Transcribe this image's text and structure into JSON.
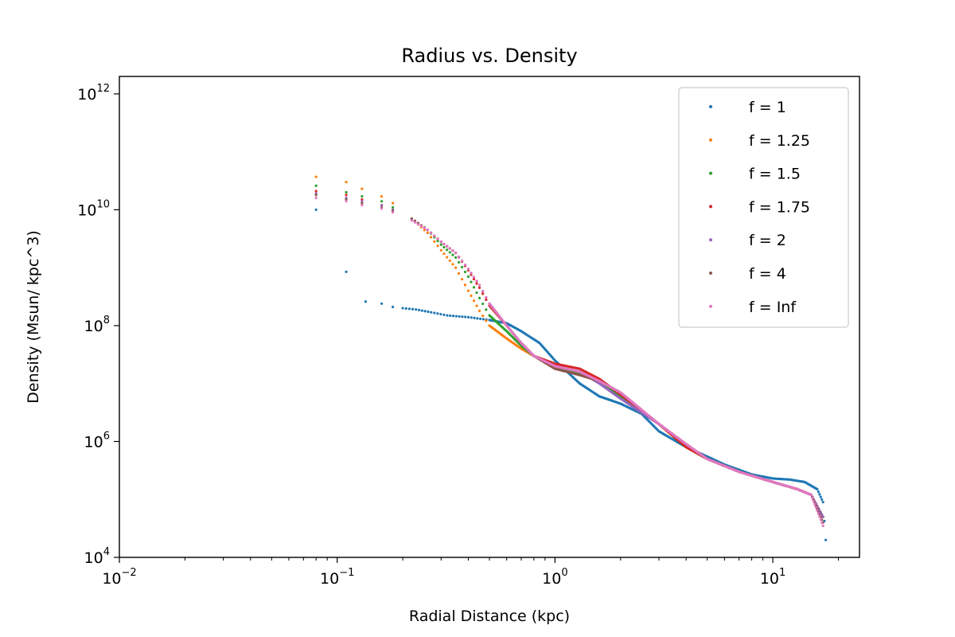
{
  "chart_data": {
    "type": "scatter",
    "title": "Radius vs. Density",
    "xlabel": "Radial Distance (kpc)",
    "ylabel": "Density (Msun/ kpc^3)",
    "xscale": "log",
    "yscale": "log",
    "xlim": [
      0.01,
      25
    ],
    "ylim": [
      10000,
      2000000000000
    ],
    "x_ticks": [
      {
        "value": 0.01,
        "base": "10",
        "exp": "−2"
      },
      {
        "value": 0.1,
        "base": "10",
        "exp": "−1"
      },
      {
        "value": 1,
        "base": "10",
        "exp": "0"
      },
      {
        "value": 10,
        "base": "10",
        "exp": "1"
      }
    ],
    "y_ticks": [
      {
        "value": 10000,
        "base": "10",
        "exp": "4"
      },
      {
        "value": 1000000,
        "base": "10",
        "exp": "6"
      },
      {
        "value": 100000000,
        "base": "10",
        "exp": "8"
      },
      {
        "value": 10000000000,
        "base": "10",
        "exp": "10"
      },
      {
        "value": 1000000000000,
        "base": "10",
        "exp": "12"
      }
    ],
    "grid": false,
    "legend_position": "top-right",
    "series": [
      {
        "name": "f = 1",
        "color": "#1f77b4",
        "points": [
          [
            0.08,
            10000000000.0
          ],
          [
            0.11,
            850000000.0
          ],
          [
            0.135,
            260000000.0
          ],
          [
            0.16,
            240000000.0
          ],
          [
            0.18,
            210000000.0
          ],
          [
            0.2,
            200000000.0
          ],
          [
            0.23,
            190000000.0
          ],
          [
            0.27,
            170000000.0
          ],
          [
            0.32,
            150000000.0
          ],
          [
            0.4,
            140000000.0
          ],
          [
            0.5,
            125000000.0
          ],
          [
            0.6,
            110000000.0
          ],
          [
            0.7,
            80000000.0
          ],
          [
            0.85,
            50000000.0
          ],
          [
            1.0,
            25000000.0
          ],
          [
            1.3,
            10000000.0
          ],
          [
            1.6,
            6000000.0
          ],
          [
            2.0,
            4500000.0
          ],
          [
            2.5,
            3000000.0
          ],
          [
            3.0,
            1500000.0
          ],
          [
            4.0,
            800000.0
          ],
          [
            5.0,
            550000.0
          ],
          [
            6.0,
            400000.0
          ],
          [
            8.0,
            270000.0
          ],
          [
            10.0,
            230000.0
          ],
          [
            12.0,
            220000.0
          ],
          [
            14.0,
            200000.0
          ],
          [
            16.0,
            150000.0
          ],
          [
            17.0,
            90000.0
          ],
          [
            17.5,
            20000.0
          ]
        ]
      },
      {
        "name": "f = 1.25",
        "color": "#ff7f0e",
        "points": [
          [
            0.08,
            37000000000.0
          ],
          [
            0.11,
            30000000000.0
          ],
          [
            0.13,
            23000000000.0
          ],
          [
            0.16,
            17000000000.0
          ],
          [
            0.18,
            13000000000.0
          ],
          [
            0.22,
            7000000000.0
          ],
          [
            0.26,
            4000000000.0
          ],
          [
            0.3,
            2000000000.0
          ],
          [
            0.35,
            1000000000.0
          ],
          [
            0.4,
            400000000.0
          ],
          [
            0.45,
            180000000.0
          ],
          [
            0.5,
            100000000.0
          ],
          [
            0.6,
            60000000.0
          ],
          [
            0.7,
            40000000.0
          ],
          [
            0.8,
            30000000.0
          ],
          [
            1.0,
            20000000.0
          ],
          [
            1.3,
            15000000.0
          ],
          [
            1.6,
            11000000.0
          ],
          [
            2.0,
            6000000.0
          ],
          [
            3.0,
            2000000.0
          ],
          [
            4.0,
            800000.0
          ],
          [
            5.0,
            500000.0
          ],
          [
            7.0,
            300000.0
          ],
          [
            10.0,
            200000.0
          ],
          [
            13.0,
            150000.0
          ],
          [
            15.0,
            120000.0
          ],
          [
            17.0,
            50000.0
          ]
        ]
      },
      {
        "name": "f = 1.5",
        "color": "#2ca02c",
        "points": [
          [
            0.08,
            26000000000.0
          ],
          [
            0.11,
            20000000000.0
          ],
          [
            0.13,
            17000000000.0
          ],
          [
            0.16,
            14000000000.0
          ],
          [
            0.18,
            11000000000.0
          ],
          [
            0.22,
            7000000000.0
          ],
          [
            0.26,
            4500000000.0
          ],
          [
            0.3,
            2500000000.0
          ],
          [
            0.35,
            1500000000.0
          ],
          [
            0.4,
            700000000.0
          ],
          [
            0.45,
            300000000.0
          ],
          [
            0.5,
            150000000.0
          ],
          [
            0.6,
            80000000.0
          ],
          [
            0.7,
            45000000.0
          ],
          [
            0.8,
            30000000.0
          ],
          [
            1.0,
            20000000.0
          ],
          [
            1.3,
            15000000.0
          ],
          [
            1.6,
            11000000.0
          ],
          [
            2.0,
            6000000.0
          ],
          [
            3.0,
            2000000.0
          ],
          [
            4.0,
            800000.0
          ],
          [
            5.0,
            500000.0
          ],
          [
            7.0,
            300000.0
          ],
          [
            10.0,
            200000.0
          ],
          [
            13.0,
            150000.0
          ],
          [
            15.0,
            120000.0
          ],
          [
            17.0,
            50000.0
          ]
        ]
      },
      {
        "name": "f = 1.75",
        "color": "#d62728",
        "points": [
          [
            0.08,
            21000000000.0
          ],
          [
            0.11,
            18000000000.0
          ],
          [
            0.13,
            15000000000.0
          ],
          [
            0.16,
            12000000000.0
          ],
          [
            0.18,
            10000000000.0
          ],
          [
            0.22,
            7000000000.0
          ],
          [
            0.26,
            4500000000.0
          ],
          [
            0.3,
            2800000000.0
          ],
          [
            0.35,
            1800000000.0
          ],
          [
            0.4,
            900000000.0
          ],
          [
            0.45,
            450000000.0
          ],
          [
            0.5,
            220000000.0
          ],
          [
            0.6,
            100000000.0
          ],
          [
            0.7,
            50000000.0
          ],
          [
            0.8,
            30000000.0
          ],
          [
            1.0,
            22000000.0
          ],
          [
            1.3,
            18000000.0
          ],
          [
            1.6,
            12000000.0
          ],
          [
            2.0,
            6500000.0
          ],
          [
            3.0,
            2000000.0
          ],
          [
            4.0,
            800000.0
          ],
          [
            5.0,
            500000.0
          ],
          [
            7.0,
            300000.0
          ],
          [
            10.0,
            200000.0
          ],
          [
            13.0,
            150000.0
          ],
          [
            15.0,
            120000.0
          ],
          [
            17.0,
            50000.0
          ]
        ]
      },
      {
        "name": "f = 2",
        "color": "#9467bd",
        "points": [
          [
            0.08,
            19000000000.0
          ],
          [
            0.11,
            16000000000.0
          ],
          [
            0.13,
            14000000000.0
          ],
          [
            0.16,
            12000000000.0
          ],
          [
            0.18,
            10000000000.0
          ],
          [
            0.22,
            7000000000.0
          ],
          [
            0.26,
            4500000000.0
          ],
          [
            0.3,
            2800000000.0
          ],
          [
            0.35,
            1800000000.0
          ],
          [
            0.4,
            950000000.0
          ],
          [
            0.45,
            500000000.0
          ],
          [
            0.5,
            240000000.0
          ],
          [
            0.6,
            100000000.0
          ],
          [
            0.7,
            50000000.0
          ],
          [
            0.8,
            30000000.0
          ],
          [
            1.0,
            20000000.0
          ],
          [
            1.3,
            16000000.0
          ],
          [
            1.6,
            10000000.0
          ],
          [
            2.0,
            5500000.0
          ],
          [
            3.0,
            2000000.0
          ],
          [
            4.0,
            900000.0
          ],
          [
            5.0,
            500000.0
          ],
          [
            7.0,
            300000.0
          ],
          [
            10.0,
            200000.0
          ],
          [
            13.0,
            150000.0
          ],
          [
            15.0,
            120000.0
          ],
          [
            17.0,
            50000.0
          ]
        ]
      },
      {
        "name": "f = 4",
        "color": "#8c564b",
        "points": [
          [
            0.08,
            18000000000.0
          ],
          [
            0.11,
            15000000000.0
          ],
          [
            0.13,
            13000000000.0
          ],
          [
            0.16,
            11000000000.0
          ],
          [
            0.18,
            9500000000.0
          ],
          [
            0.22,
            7000000000.0
          ],
          [
            0.26,
            4500000000.0
          ],
          [
            0.3,
            2800000000.0
          ],
          [
            0.35,
            1800000000.0
          ],
          [
            0.4,
            950000000.0
          ],
          [
            0.45,
            500000000.0
          ],
          [
            0.5,
            240000000.0
          ],
          [
            0.6,
            100000000.0
          ],
          [
            0.7,
            50000000.0
          ],
          [
            0.8,
            30000000.0
          ],
          [
            1.0,
            18000000.0
          ],
          [
            1.3,
            14000000.0
          ],
          [
            1.6,
            11000000.0
          ],
          [
            2.0,
            7000000.0
          ],
          [
            3.0,
            2000000.0
          ],
          [
            4.0,
            900000.0
          ],
          [
            5.0,
            500000.0
          ],
          [
            7.0,
            300000.0
          ],
          [
            10.0,
            200000.0
          ],
          [
            13.0,
            150000.0
          ],
          [
            15.0,
            120000.0
          ],
          [
            17.0,
            40000.0
          ]
        ]
      },
      {
        "name": "f = Inf",
        "color": "#e377c2",
        "points": [
          [
            0.08,
            16000000000.0
          ],
          [
            0.11,
            14000000000.0
          ],
          [
            0.13,
            12000000000.0
          ],
          [
            0.16,
            10500000000.0
          ],
          [
            0.18,
            9000000000.0
          ],
          [
            0.22,
            6500000000.0
          ],
          [
            0.26,
            4500000000.0
          ],
          [
            0.3,
            2800000000.0
          ],
          [
            0.35,
            1800000000.0
          ],
          [
            0.4,
            950000000.0
          ],
          [
            0.45,
            500000000.0
          ],
          [
            0.5,
            240000000.0
          ],
          [
            0.6,
            100000000.0
          ],
          [
            0.7,
            50000000.0
          ],
          [
            0.8,
            30000000.0
          ],
          [
            1.0,
            20000000.0
          ],
          [
            1.3,
            16000000.0
          ],
          [
            1.6,
            11000000.0
          ],
          [
            2.0,
            7000000.0
          ],
          [
            3.0,
            2000000.0
          ],
          [
            4.0,
            900000.0
          ],
          [
            5.0,
            500000.0
          ],
          [
            7.0,
            300000.0
          ],
          [
            10.0,
            200000.0
          ],
          [
            13.0,
            150000.0
          ],
          [
            15.0,
            120000.0
          ],
          [
            17.0,
            35000.0
          ]
        ]
      }
    ]
  }
}
